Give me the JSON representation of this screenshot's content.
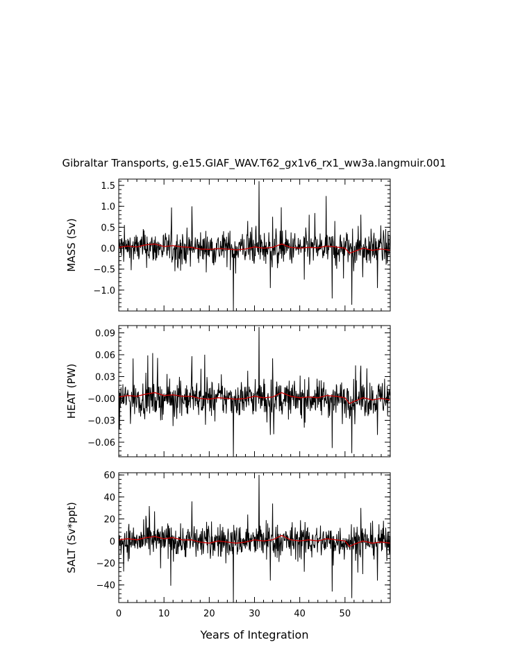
{
  "title": "Gibraltar Transports, g.e15.GIAF_WAV.T62_gx1v6_rx1_ww3a.langmuir.001",
  "chart_data": [
    {
      "type": "line",
      "ylabel": "MASS (Sv)",
      "ylim": [
        -1.5,
        1.65
      ],
      "yticks": [
        1.5,
        1.0,
        0.5,
        0.0,
        -0.5,
        -1.0
      ],
      "ytick_labels": [
        "1.5",
        "1.0",
        "0.5",
        "0.0",
        "−0.5",
        "−1.0"
      ],
      "xlim": [
        0,
        60
      ],
      "grid": false,
      "amp": 0.2,
      "spikes": [
        {
          "x": 16.2,
          "y": 1.0
        },
        {
          "x": 25.3,
          "y": -1.5
        },
        {
          "x": 31.0,
          "y": 1.6
        },
        {
          "x": 33.5,
          "y": -0.95
        },
        {
          "x": 47.2,
          "y": -1.2
        },
        {
          "x": 51.5,
          "y": -1.35
        },
        {
          "x": 57.2,
          "y": -0.95
        },
        {
          "x": 0.0,
          "y": -0.9
        },
        {
          "x": 41.0,
          "y": -0.75
        },
        {
          "x": 53.5,
          "y": 0.8
        },
        {
          "x": 28.5,
          "y": 0.65
        },
        {
          "x": 34.0,
          "y": 0.75
        }
      ],
      "series": [
        {
          "values_note": "",
          "color": "#000000"
        },
        {
          "color": "#cc0000"
        }
      ],
      "running_mean": {
        "x": [
          0,
          2,
          4,
          6,
          8,
          10,
          12,
          14,
          16,
          18,
          20,
          22,
          24,
          26,
          28,
          30,
          32,
          34,
          36,
          38,
          40,
          42,
          44,
          46,
          48,
          50,
          51,
          52,
          54,
          56,
          58,
          60
        ],
        "y": [
          0.02,
          0.05,
          0.03,
          0.08,
          0.1,
          0.04,
          0.06,
          0.03,
          0.02,
          -0.02,
          -0.03,
          -0.01,
          -0.02,
          -0.04,
          -0.02,
          0.03,
          0.0,
          0.02,
          0.1,
          0.02,
          0.0,
          0.02,
          0.01,
          0.05,
          0.03,
          0.0,
          -0.12,
          -0.08,
          0.0,
          -0.05,
          -0.02,
          -0.05
        ]
      }
    },
    {
      "type": "line",
      "ylabel": "HEAT (PW)",
      "ylim": [
        -0.08,
        0.1
      ],
      "yticks": [
        0.09,
        0.06,
        0.03,
        0.0,
        -0.03,
        -0.06
      ],
      "ytick_labels": [
        "0.09",
        "0.06",
        "0.03",
        "−0.00",
        "−0.03",
        "−0.06"
      ],
      "xlim": [
        0,
        60
      ],
      "grid": false,
      "amp": 0.012,
      "spikes": [
        {
          "x": 16.2,
          "y": 0.058
        },
        {
          "x": 25.3,
          "y": -0.08
        },
        {
          "x": 31.0,
          "y": 0.098
        },
        {
          "x": 33.5,
          "y": -0.05
        },
        {
          "x": 47.2,
          "y": -0.068
        },
        {
          "x": 51.5,
          "y": -0.075
        },
        {
          "x": 57.2,
          "y": -0.05
        },
        {
          "x": 0.0,
          "y": -0.045
        },
        {
          "x": 41.0,
          "y": -0.04
        },
        {
          "x": 53.5,
          "y": 0.045
        },
        {
          "x": 28.5,
          "y": 0.038
        },
        {
          "x": 34.0,
          "y": 0.055
        }
      ],
      "running_mean": {
        "x": [
          0,
          2,
          4,
          6,
          8,
          10,
          12,
          14,
          16,
          18,
          20,
          22,
          24,
          26,
          28,
          30,
          32,
          34,
          36,
          38,
          40,
          42,
          44,
          46,
          48,
          50,
          51,
          52,
          54,
          56,
          58,
          60
        ],
        "y": [
          0.002,
          0.004,
          0.003,
          0.006,
          0.008,
          0.004,
          0.005,
          0.003,
          0.003,
          0.0,
          -0.001,
          0.001,
          0.0,
          -0.001,
          0.0,
          0.003,
          0.001,
          0.002,
          0.008,
          0.003,
          0.001,
          0.002,
          0.001,
          0.004,
          0.003,
          0.001,
          -0.007,
          -0.004,
          0.001,
          -0.002,
          0.0,
          -0.002
        ]
      }
    },
    {
      "type": "line",
      "ylabel": "SALT (Sv*ppt)",
      "ylim": [
        -56,
        62
      ],
      "yticks": [
        60,
        40,
        20,
        0,
        -20,
        -40
      ],
      "ytick_labels": [
        "60",
        "40",
        "20",
        "0",
        "−20",
        "−40"
      ],
      "xlim": [
        0,
        60
      ],
      "xticks": [
        0,
        10,
        20,
        30,
        40,
        50
      ],
      "xtick_labels": [
        "0",
        "10",
        "20",
        "30",
        "40",
        "50"
      ],
      "xlabel": "Years of Integration",
      "grid": false,
      "amp": 7.5,
      "spikes": [
        {
          "x": 16.2,
          "y": 36
        },
        {
          "x": 25.3,
          "y": -56
        },
        {
          "x": 31.0,
          "y": 60
        },
        {
          "x": 33.5,
          "y": -36
        },
        {
          "x": 47.2,
          "y": -46
        },
        {
          "x": 51.5,
          "y": -52
        },
        {
          "x": 57.2,
          "y": -36
        },
        {
          "x": 0.0,
          "y": -33
        },
        {
          "x": 41.0,
          "y": -28
        },
        {
          "x": 53.5,
          "y": 30
        },
        {
          "x": 28.5,
          "y": 24
        },
        {
          "x": 34.0,
          "y": 34
        }
      ],
      "running_mean": {
        "x": [
          0,
          2,
          4,
          6,
          8,
          10,
          12,
          14,
          16,
          18,
          20,
          22,
          24,
          26,
          28,
          30,
          32,
          34,
          36,
          38,
          40,
          42,
          44,
          46,
          48,
          50,
          51,
          52,
          54,
          56,
          58,
          60
        ],
        "y": [
          1,
          2,
          1,
          3,
          4,
          2,
          3,
          1,
          1,
          -1,
          -2,
          0,
          -1,
          -2,
          -1,
          1,
          0,
          1,
          5,
          1,
          0,
          1,
          0,
          2,
          1,
          0,
          -5,
          -3,
          0,
          -2,
          -1,
          -2
        ]
      }
    }
  ]
}
